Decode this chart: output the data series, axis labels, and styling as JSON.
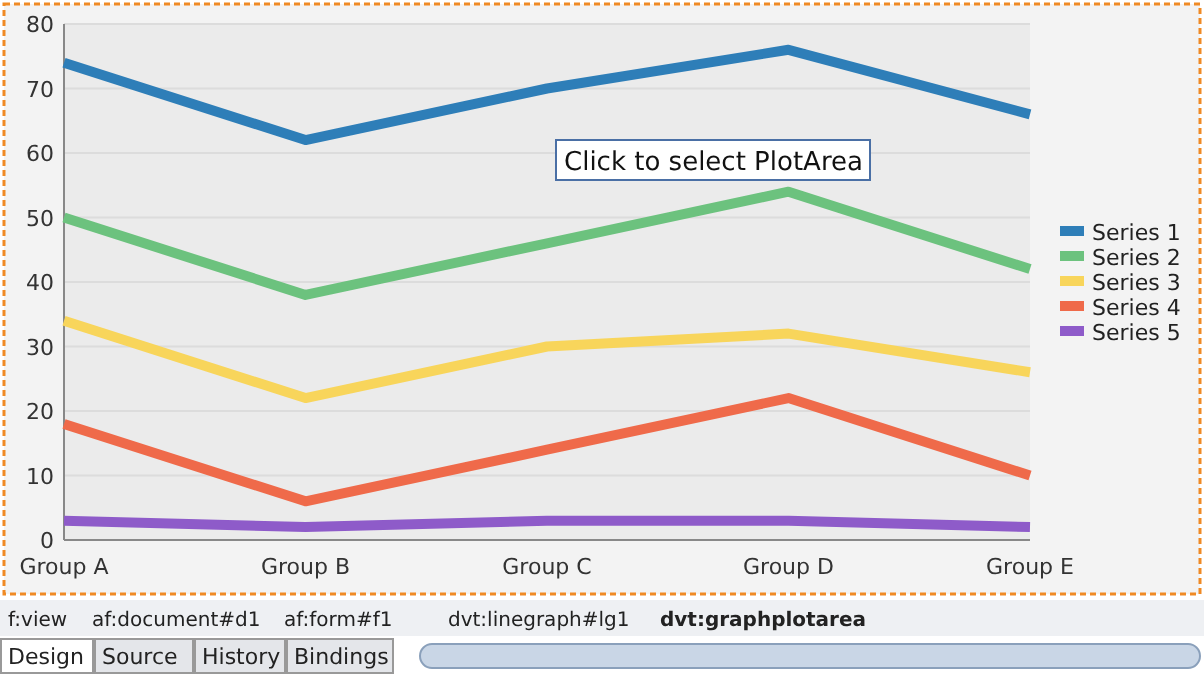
{
  "chart_data": {
    "type": "line",
    "categories": [
      "Group A",
      "Group B",
      "Group C",
      "Group D",
      "Group E"
    ],
    "series": [
      {
        "name": "Series 1",
        "color": "#2e7eb8",
        "values": [
          74,
          62,
          70,
          76,
          66
        ]
      },
      {
        "name": "Series 2",
        "color": "#6cc27e",
        "values": [
          50,
          38,
          46,
          54,
          42
        ]
      },
      {
        "name": "Series 3",
        "color": "#f8d55b",
        "values": [
          34,
          22,
          30,
          32,
          26
        ]
      },
      {
        "name": "Series 4",
        "color": "#ef6a4a",
        "values": [
          18,
          6,
          14,
          22,
          10
        ]
      },
      {
        "name": "Series 5",
        "color": "#8e5bc9",
        "values": [
          3,
          2,
          3,
          3,
          2
        ]
      }
    ],
    "ylim": [
      0,
      80
    ],
    "yticks": [
      0,
      10,
      20,
      30,
      40,
      50,
      60,
      70,
      80
    ],
    "grid": "y",
    "legend": "right",
    "marker": "none",
    "line_style": "solid",
    "annotations": [
      "Click to select PlotArea",
      "f:view",
      "af:document#d1",
      "af:form#f1",
      "dvt:linegraph#lg1",
      "dvt:graphplotarea",
      "Design",
      "Source",
      "History",
      "Bindings"
    ]
  }
}
